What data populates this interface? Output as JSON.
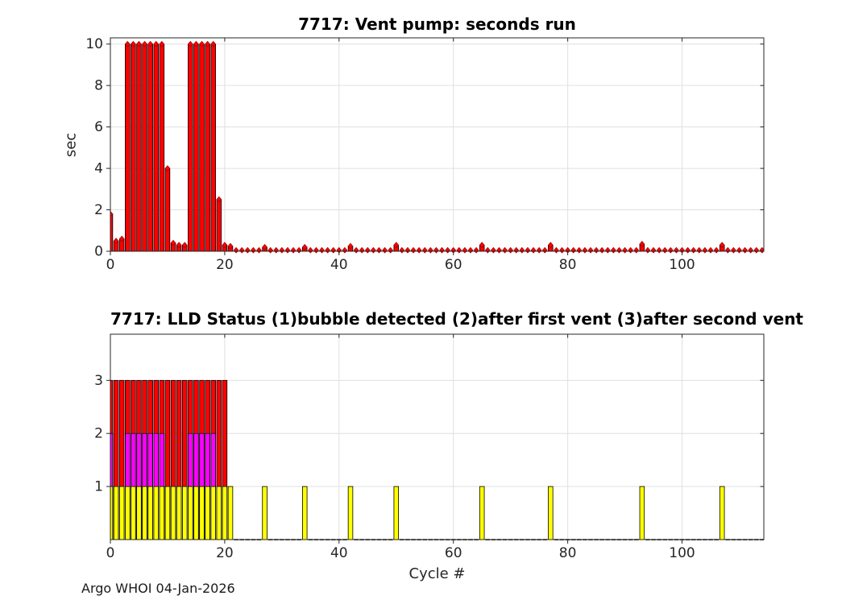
{
  "figure": {
    "footer": "Argo WHOI 04-Jan-2026",
    "background": "#FFFFFF"
  },
  "colors": {
    "bar_red": "#FF0000",
    "bar_magenta": "#FF00FF",
    "bar_yellow": "#FFFF00",
    "bar_edge": "#000000",
    "marker_fill": "#FF0000",
    "marker_edge": "#990000",
    "grid": "#E0E0E0",
    "axis": "#262626",
    "tick_label": "#262626"
  },
  "chart_data": [
    {
      "type": "bar",
      "title": "7717: Vent pump: seconds run",
      "ylabel": "sec",
      "xlabel": "",
      "x_range": [
        0,
        114
      ],
      "xlim": [
        0,
        114.3
      ],
      "ylim": [
        0,
        10.3
      ],
      "xticks": [
        0,
        20,
        40,
        60,
        80,
        100
      ],
      "yticks": [
        0,
        2,
        4,
        6,
        8,
        10
      ],
      "grid": "on",
      "marker": "diamond",
      "values": [
        1.8,
        0.5,
        0.6,
        10,
        10,
        10,
        10,
        10,
        10,
        10,
        4,
        0.4,
        0.3,
        0.3,
        10,
        10,
        10,
        10,
        10,
        2.5,
        0.3,
        0.25,
        0.05,
        0.05,
        0.05,
        0.05,
        0.05,
        0.2,
        0.05,
        0.05,
        0.05,
        0.05,
        0.05,
        0.05,
        0.2,
        0.05,
        0.05,
        0.05,
        0.05,
        0.05,
        0.05,
        0.05,
        0.25,
        0.05,
        0.05,
        0.05,
        0.05,
        0.05,
        0.05,
        0.05,
        0.3,
        0.05,
        0.05,
        0.05,
        0.05,
        0.05,
        0.05,
        0.05,
        0.05,
        0.05,
        0.05,
        0.05,
        0.05,
        0.05,
        0.05,
        0.3,
        0.05,
        0.05,
        0.05,
        0.05,
        0.05,
        0.05,
        0.05,
        0.05,
        0.05,
        0.05,
        0.05,
        0.3,
        0.05,
        0.05,
        0.05,
        0.05,
        0.05,
        0.05,
        0.05,
        0.05,
        0.05,
        0.05,
        0.05,
        0.05,
        0.05,
        0.05,
        0.05,
        0.35,
        0.05,
        0.05,
        0.05,
        0.05,
        0.05,
        0.05,
        0.05,
        0.05,
        0.05,
        0.05,
        0.05,
        0.05,
        0.05,
        0.3,
        0.05,
        0.05,
        0.05,
        0.05,
        0.05,
        0.05,
        0.05
      ]
    },
    {
      "type": "bar-overlay",
      "title": "7717: LLD Status   (1)bubble detected   (2)after first vent  (3)after second vent",
      "ylabel": "",
      "xlabel": "Cycle #",
      "x_range": [
        0,
        114
      ],
      "xlim": [
        0,
        114.3
      ],
      "ylim": [
        0,
        3.87
      ],
      "xticks": [
        0,
        20,
        40,
        60,
        80,
        100
      ],
      "yticks": [
        1,
        2,
        3
      ],
      "grid": "on",
      "series": [
        {
          "name": "after second vent (3)",
          "color": "#FF0000",
          "height": 3,
          "cycles": [
            0,
            1,
            2,
            3,
            4,
            5,
            6,
            7,
            8,
            9,
            10,
            11,
            12,
            13,
            14,
            15,
            16,
            17,
            18,
            19,
            20
          ]
        },
        {
          "name": "after first vent (2)",
          "color": "#FF00FF",
          "height": 2,
          "cycles": [
            0,
            3,
            4,
            5,
            6,
            7,
            8,
            9,
            14,
            15,
            16,
            17,
            18
          ]
        },
        {
          "name": "bubble detected (1)",
          "color": "#FFFF00",
          "height": 1,
          "cycles": [
            0,
            1,
            2,
            3,
            4,
            5,
            6,
            7,
            8,
            9,
            10,
            11,
            12,
            13,
            14,
            15,
            16,
            17,
            18,
            19,
            20,
            21,
            27,
            34,
            42,
            50,
            65,
            77,
            93,
            107
          ]
        }
      ]
    }
  ]
}
